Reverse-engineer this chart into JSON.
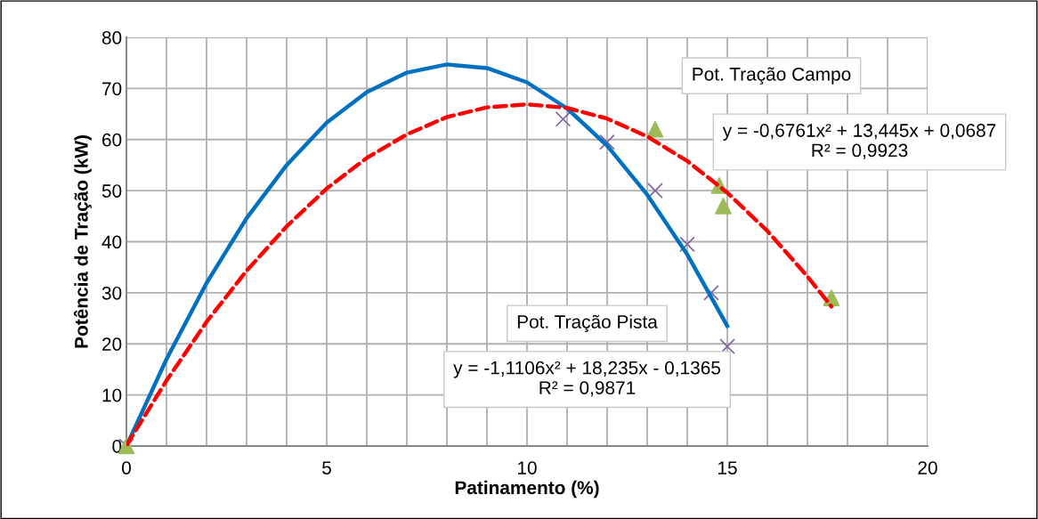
{
  "chart_data": {
    "type": "scatter",
    "xlabel": "Patinamento (%)",
    "ylabel": "Potência de Tração (kW)",
    "xlim": [
      0,
      20
    ],
    "ylim": [
      0,
      80
    ],
    "xticks": [
      0,
      {
        "value": 1,
        "label": null
      },
      {
        "value": 2,
        "label": null
      },
      {
        "value": 3,
        "label": null
      },
      {
        "value": 4,
        "label": null
      },
      5,
      {
        "value": 6,
        "label": null
      },
      {
        "value": 7,
        "label": null
      },
      {
        "value": 8,
        "label": null
      },
      {
        "value": 9,
        "label": null
      },
      10,
      {
        "value": 11,
        "label": null
      },
      {
        "value": 12,
        "label": null
      },
      {
        "value": 13,
        "label": null
      },
      {
        "value": 14,
        "label": null
      },
      15,
      {
        "value": 16,
        "label": null
      },
      {
        "value": 17,
        "label": null
      },
      {
        "value": 18,
        "label": null
      },
      {
        "value": 19,
        "label": null
      },
      20
    ],
    "yticks": [
      0,
      10,
      20,
      30,
      40,
      50,
      60,
      70,
      80
    ],
    "grid": true,
    "legend": false,
    "series": [
      {
        "marker": "cross",
        "color": "#8064a2",
        "x": [
          0,
          10.9,
          12.0,
          13.2,
          14.0,
          14.6,
          15.0
        ],
        "values": [
          0,
          64,
          59.5,
          50,
          39.5,
          30,
          19.5
        ]
      },
      {
        "marker": "triangle",
        "color": "#9bbb59",
        "x": [
          0,
          13.2,
          14.8,
          14.9,
          17.6
        ],
        "values": [
          0,
          62,
          51,
          47,
          29
        ]
      },
      {
        "type": "line",
        "marker": "none",
        "line_style": "solid",
        "color": "#0070c0",
        "x": [
          0,
          1,
          2,
          3,
          4,
          5,
          6,
          7,
          8,
          9,
          10,
          11,
          12,
          13,
          14,
          15
        ],
        "values": [
          0,
          17,
          31.9,
          44.6,
          55,
          63.3,
          69.3,
          73.1,
          74.7,
          74,
          71.2,
          66.1,
          58.8,
          49.2,
          37.5,
          23.5
        ]
      },
      {
        "type": "line",
        "marker": "none",
        "line_style": "dashed",
        "color": "#ff0000",
        "x": [
          0,
          1,
          2,
          3,
          4,
          5,
          6,
          7,
          8,
          9,
          10,
          11,
          12,
          13,
          14,
          15,
          16,
          17,
          17.6
        ],
        "values": [
          0.1,
          12.8,
          24.3,
          34.3,
          43,
          50.4,
          56.4,
          61,
          64.4,
          66.3,
          66.9,
          66.2,
          64.1,
          60.6,
          55.8,
          49.6,
          42.1,
          33.2,
          27.3
        ]
      }
    ],
    "annotations": [
      "Pot. Tração Campo",
      "y = -0,6761x² + 13,445x + 0,0687\nR² = 0,9923",
      "Pot. Tração Pista",
      "y = -1,1106x² + 18,235x - 0,1365\nR² = 0,9871"
    ]
  }
}
